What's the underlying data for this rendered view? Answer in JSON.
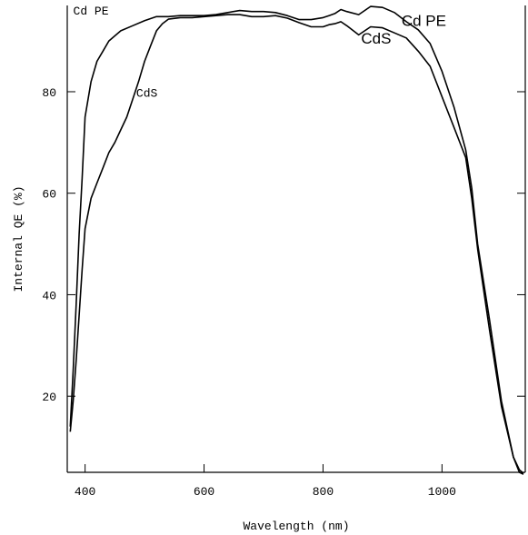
{
  "chart_data": {
    "type": "line",
    "title": "",
    "xlabel": "Wavelength (nm)",
    "ylabel": "Internal QE (%)",
    "xlim": [
      370,
      1140
    ],
    "ylim": [
      5,
      97
    ],
    "x_ticks": [
      400,
      600,
      800,
      1000
    ],
    "y_ticks": [
      20,
      40,
      60,
      80
    ],
    "grid": false,
    "legend": "none",
    "series": [
      {
        "name": "Cd PE",
        "x": [
          375,
          380,
          385,
          390,
          395,
          400,
          410,
          420,
          430,
          440,
          460,
          480,
          500,
          520,
          540,
          560,
          580,
          600,
          620,
          640,
          660,
          680,
          700,
          720,
          740,
          760,
          780,
          800,
          810,
          820,
          830,
          840,
          860,
          880,
          900,
          920,
          940,
          960,
          980,
          1000,
          1020,
          1040,
          1050,
          1060,
          1080,
          1100,
          1120,
          1130,
          1137
        ],
        "y": [
          14,
          25,
          38,
          52,
          63,
          75,
          82,
          86,
          88,
          90,
          92,
          93,
          94,
          94.8,
          94.8,
          95,
          95,
          95,
          95.2,
          95.6,
          96,
          95.8,
          95.8,
          95.6,
          95,
          94.2,
          94.2,
          94.6,
          95,
          95.4,
          96.2,
          95.8,
          95.2,
          96.8,
          96.6,
          95.6,
          93.8,
          92.2,
          89.5,
          84,
          77,
          68.5,
          61,
          50,
          35,
          19,
          8,
          5.5,
          4.8
        ]
      },
      {
        "name": "CdS",
        "x": [
          375,
          380,
          385,
          390,
          395,
          400,
          410,
          420,
          430,
          440,
          450,
          460,
          470,
          480,
          490,
          500,
          510,
          520,
          530,
          540,
          560,
          580,
          600,
          620,
          640,
          660,
          680,
          700,
          720,
          740,
          760,
          780,
          800,
          810,
          820,
          830,
          840,
          860,
          880,
          900,
          920,
          940,
          960,
          980,
          1000,
          1020,
          1040,
          1050,
          1060,
          1080,
          1100,
          1120,
          1130,
          1137
        ],
        "y": [
          13,
          19,
          27,
          36,
          45,
          53,
          59,
          62,
          65,
          68,
          70,
          72.5,
          75,
          78.5,
          82,
          86,
          89,
          92,
          93.4,
          94.3,
          94.6,
          94.6,
          94.8,
          95,
          95.2,
          95.2,
          94.8,
          94.8,
          95,
          94.5,
          93.6,
          92.8,
          92.8,
          93.2,
          93.4,
          93.8,
          93,
          91.2,
          92.8,
          92.6,
          91.6,
          90.6,
          88,
          85,
          79,
          73,
          67,
          59,
          49,
          33,
          18,
          8,
          5,
          4.6
        ]
      }
    ],
    "annotations": [
      {
        "text": "Cd PE",
        "x": 380,
        "y": 95.2,
        "style": "small"
      },
      {
        "text": "CdS",
        "x": 486,
        "y": 79,
        "style": "small"
      },
      {
        "text": "CdS",
        "x": 864,
        "y": 89.5,
        "style": "large"
      },
      {
        "text": "Cd PE",
        "x": 932,
        "y": 93,
        "style": "large"
      }
    ]
  }
}
